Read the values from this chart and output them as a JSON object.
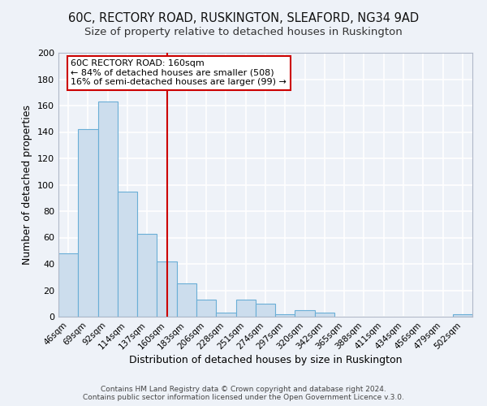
{
  "title1": "60C, RECTORY ROAD, RUSKINGTON, SLEAFORD, NG34 9AD",
  "title2": "Size of property relative to detached houses in Ruskington",
  "xlabel": "Distribution of detached houses by size in Ruskington",
  "ylabel": "Number of detached properties",
  "bar_labels": [
    "46sqm",
    "69sqm",
    "92sqm",
    "114sqm",
    "137sqm",
    "160sqm",
    "183sqm",
    "206sqm",
    "228sqm",
    "251sqm",
    "274sqm",
    "297sqm",
    "320sqm",
    "342sqm",
    "365sqm",
    "388sqm",
    "411sqm",
    "434sqm",
    "456sqm",
    "479sqm",
    "502sqm"
  ],
  "bar_values": [
    48,
    142,
    163,
    95,
    63,
    42,
    25,
    13,
    3,
    13,
    10,
    2,
    5,
    3,
    0,
    0,
    0,
    0,
    0,
    0,
    2
  ],
  "bar_color": "#ccdded",
  "bar_edge_color": "#6aaed6",
  "vline_x": 5,
  "vline_color": "#cc0000",
  "annotation_title": "60C RECTORY ROAD: 160sqm",
  "annotation_line1": "← 84% of detached houses are smaller (508)",
  "annotation_line2": "16% of semi-detached houses are larger (99) →",
  "annotation_box_color": "#ffffff",
  "annotation_box_edge": "#cc0000",
  "ylim": [
    0,
    200
  ],
  "yticks": [
    0,
    20,
    40,
    60,
    80,
    100,
    120,
    140,
    160,
    180,
    200
  ],
  "footer1": "Contains HM Land Registry data © Crown copyright and database right 2024.",
  "footer2": "Contains public sector information licensed under the Open Government Licence v.3.0.",
  "bg_color": "#eef2f8",
  "grid_color": "#ffffff",
  "title1_fontsize": 10.5,
  "title2_fontsize": 9.5
}
